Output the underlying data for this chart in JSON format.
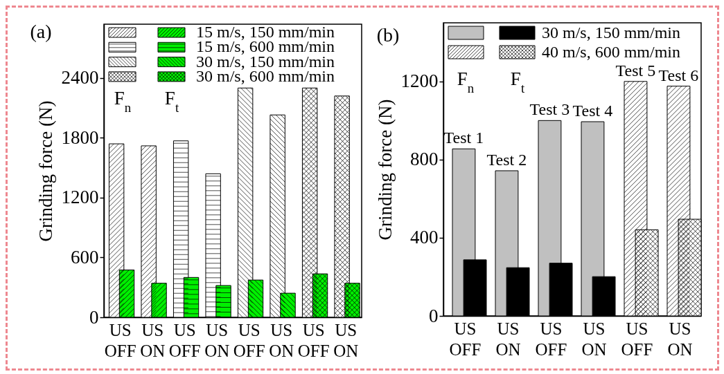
{
  "chart_data": [
    {
      "type": "bar",
      "title": "(a)",
      "ylabel": "Grinding force (N)",
      "categories": [
        "US OFF",
        "US ON",
        "US OFF",
        "US ON",
        "US OFF",
        "US ON",
        "US OFF",
        "US ON"
      ],
      "ylim": [
        0,
        2940
      ],
      "yticks": [
        0,
        600,
        1200,
        1800,
        2400
      ],
      "grid": false,
      "legend": "top left",
      "annotations": [
        "F$_{n}$",
        "F$_{t}$"
      ],
      "series": [
        {
          "color": "#ffffff",
          "values": [
            1740,
            1720,
            null,
            null,
            null,
            null,
            null,
            null
          ]
        },
        {
          "name": "15 m/s, 150 mm/min",
          "color": "#00f000",
          "values": [
            475,
            342,
            null,
            null,
            null,
            null,
            null,
            null
          ]
        },
        {
          "color": "#ffffff",
          "values": [
            null,
            null,
            1770,
            1440,
            null,
            null,
            null,
            null
          ]
        },
        {
          "name": "15 m/s, 600 mm/min",
          "color": "#00f000",
          "values": [
            null,
            null,
            400,
            319,
            null,
            null,
            null,
            null
          ]
        },
        {
          "color": "#ffffff",
          "values": [
            null,
            null,
            null,
            null,
            2300,
            2030,
            null,
            null
          ]
        },
        {
          "name": "30 m/s, 150 mm/min",
          "color": "#00f000",
          "values": [
            null,
            null,
            null,
            null,
            374,
            242,
            null,
            null
          ]
        },
        {
          "color": "#ffffff",
          "values": [
            null,
            null,
            null,
            null,
            null,
            null,
            2300,
            2220
          ]
        },
        {
          "name": "30 m/s, 600 mm/min",
          "color": "#00f000",
          "values": [
            null,
            null,
            null,
            null,
            null,
            null,
            436,
            342
          ]
        }
      ]
    },
    {
      "type": "bar",
      "title": "(b)",
      "ylabel": "Grinding force (N)",
      "categories": [
        "US OFF",
        "US ON",
        "US OFF",
        "US ON",
        "US OFF",
        "US ON"
      ],
      "ylim": [
        0,
        1500
      ],
      "yticks": [
        0,
        400,
        800,
        1200
      ],
      "grid": false,
      "legend": "top left",
      "annotations": [
        "F$_{n}$",
        "F$_{t}$",
        {
          "text": "Test 1",
          "y": 855
        },
        {
          "text": "Test 2",
          "y": 743
        },
        {
          "text": "Test 3",
          "y": 1000
        },
        {
          "text": "Test 4",
          "y": 994
        },
        {
          "text": "Test 5",
          "y": 1200
        },
        {
          "text": "Test 6",
          "y": 1176
        }
      ],
      "series": [
        {
          "color": "#c0c0c0",
          "values": [
            855,
            743,
            1000,
            994,
            null,
            null
          ]
        },
        {
          "name": "30 m/s, 150 mm/min",
          "color": "#000000",
          "values": [
            287,
            247,
            270,
            201,
            null,
            null
          ]
        },
        {
          "color": "#ffffff",
          "values": [
            null,
            null,
            null,
            null,
            1200,
            1176
          ]
        },
        {
          "name": "40 m/s, 600 mm/min",
          "color": "#ffffff",
          "values": [
            null,
            null,
            null,
            null,
            441,
            495
          ]
        }
      ]
    }
  ]
}
